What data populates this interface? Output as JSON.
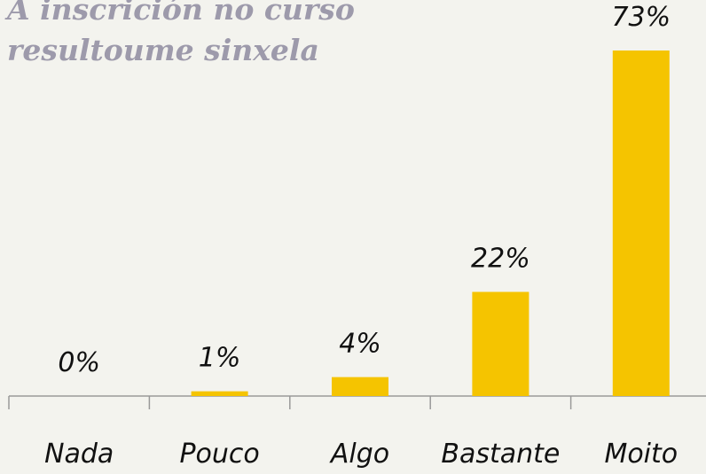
{
  "chart_data": {
    "type": "bar",
    "title": "A inscrición no curso resultoume sinxela",
    "categories": [
      "Nada",
      "Pouco",
      "Algo",
      "Bastante",
      "Moito"
    ],
    "values": [
      0,
      1,
      4,
      22,
      73
    ],
    "value_labels": [
      "0%",
      "1%",
      "4%",
      "22%",
      "73%"
    ],
    "color": "#f5c400"
  }
}
